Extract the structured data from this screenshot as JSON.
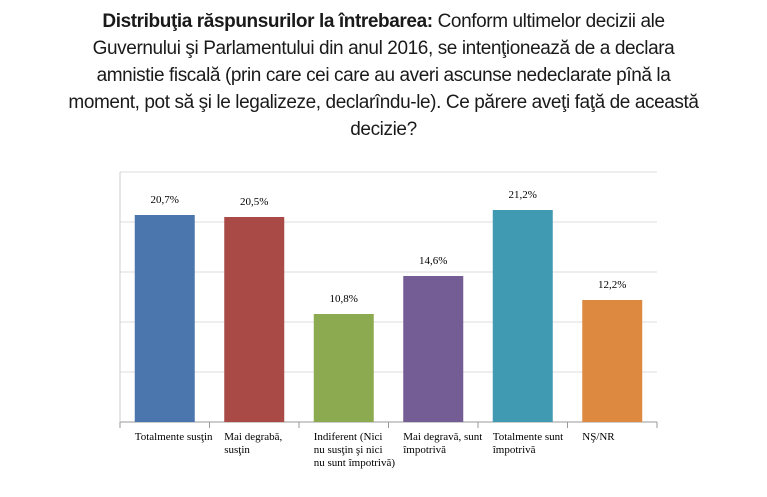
{
  "chart_data": {
    "type": "bar",
    "title": "Distribuţia răspunsurilor la întrebarea:",
    "subtitle": "Conform ultimelor decizii ale Guvernului şi Parlamentului din anul 2016, se intenţionează de a declara amnistie fiscală (prin care cei care au averi ascunse nedeclarate pînă la moment, pot să şi le legalizeze, declarîndu-le). Ce părere aveţi faţă de această decizie?",
    "categories": [
      "Totalmente susţin",
      "Mai degrabă, susţin",
      "Indiferent (Nici nu susţin şi nici nu sunt împotrivă)",
      "Mai degravă, sunt împotrivă",
      "Totalmente sunt împotrivă",
      "NŞ/NR"
    ],
    "values": [
      20.7,
      20.5,
      10.8,
      14.6,
      21.2,
      12.2
    ],
    "value_labels": [
      "20,7%",
      "20,5%",
      "10,8%",
      "14,6%",
      "21,2%",
      "12,2%"
    ],
    "colors": [
      "#4a76ad",
      "#a94a47",
      "#8cab50",
      "#745c94",
      "#3f9ab2",
      "#dd8a40"
    ],
    "ylim": [
      0,
      25
    ],
    "yticks": [
      0,
      5,
      10,
      15,
      20,
      25
    ],
    "grid": true
  }
}
